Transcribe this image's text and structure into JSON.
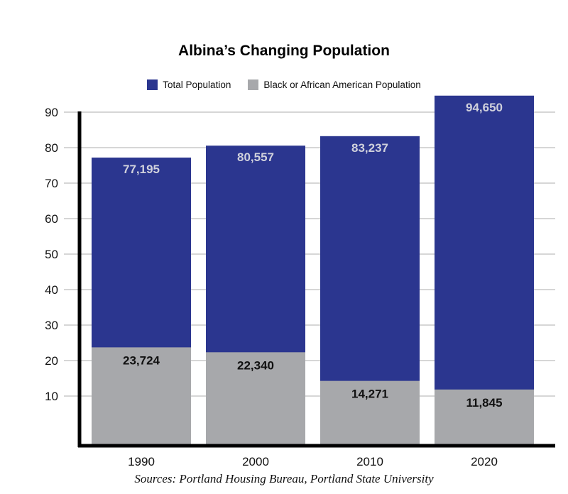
{
  "chart_data": {
    "type": "bar",
    "title": "Albina’s Changing Population",
    "categories": [
      "1990",
      "2000",
      "2010",
      "2020"
    ],
    "series": [
      {
        "name": "Total Population",
        "values": [
          77195,
          80557,
          83237,
          94650
        ],
        "labels": [
          "77,195",
          "80,557",
          "83,237",
          "94,650"
        ]
      },
      {
        "name": "Black or African American Population",
        "values": [
          23724,
          22340,
          14271,
          11845
        ],
        "labels": [
          "23,724",
          "22,340",
          "14,271",
          "11,845"
        ]
      }
    ],
    "y_ticks": [
      10,
      20,
      30,
      40,
      50,
      60,
      70,
      80,
      90
    ],
    "ylim": [
      0,
      90
    ],
    "grid": true,
    "legend_position": "top-center",
    "xlabel": "",
    "ylabel": "",
    "source": "Sources: Portland Housing Bureau, Portland State University"
  },
  "colors": {
    "total": "#2b368f",
    "black_pop": "#a7a8ab",
    "total_label": "#d0d1dc",
    "black_label": "#111111",
    "grid": "#c8c8c8",
    "axis": "#000000"
  }
}
